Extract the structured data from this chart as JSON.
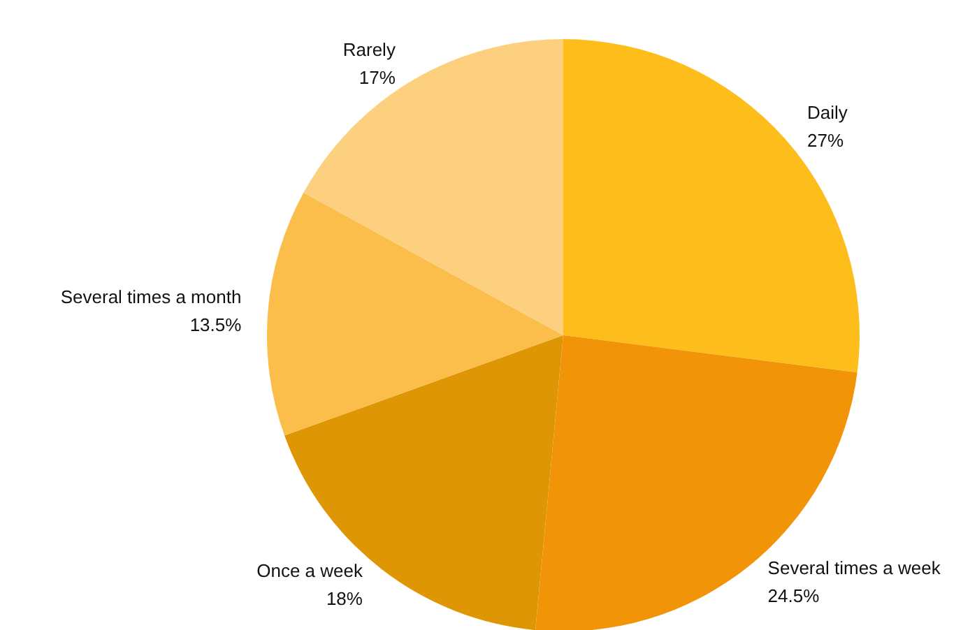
{
  "chart_data": {
    "type": "pie",
    "categories": [
      "Daily",
      "Several times a week",
      "Once a week",
      "Several times a month",
      "Rarely"
    ],
    "values": [
      27,
      24.5,
      18,
      13.5,
      17
    ],
    "value_labels": [
      "27%",
      "24.5%",
      "18%",
      "13.5%",
      "17%"
    ],
    "colors": [
      "#fdbe1c",
      "#f29408",
      "#df9604",
      "#fbbe4b",
      "#fcd07f"
    ],
    "legend": false
  }
}
